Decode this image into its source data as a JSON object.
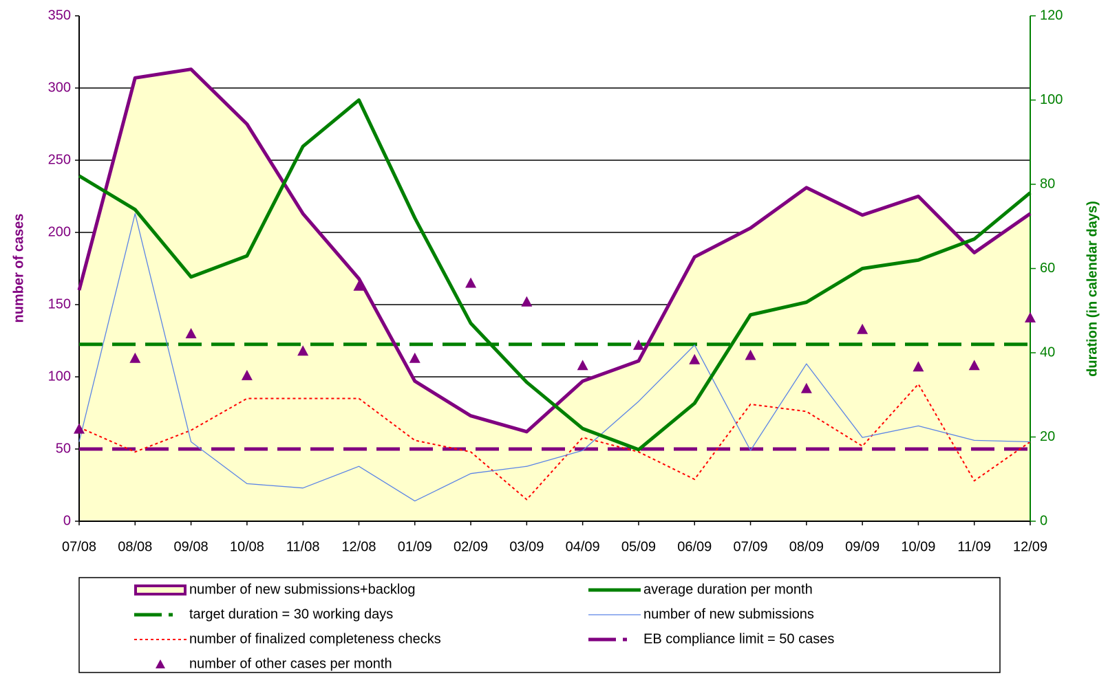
{
  "chart_data": {
    "type": "combo",
    "y_label": "number of cases",
    "y2_label": "duration (in calendar days)",
    "categories": [
      "07/08",
      "08/08",
      "09/08",
      "10/08",
      "11/08",
      "12/08",
      "01/09",
      "02/09",
      "03/09",
      "04/09",
      "05/09",
      "06/09",
      "07/09",
      "08/09",
      "09/09",
      "10/09",
      "11/09",
      "12/09"
    ],
    "ylim": [
      0,
      350
    ],
    "yticks": [
      0,
      50,
      100,
      150,
      200,
      250,
      300,
      350
    ],
    "y2lim": [
      0,
      120
    ],
    "y2ticks": [
      0,
      20,
      40,
      60,
      80,
      100,
      120
    ],
    "grid": true,
    "grid_values": [
      100,
      150,
      200,
      250,
      300
    ],
    "series": [
      {
        "name": "number of new submissions+backlog",
        "style": "area",
        "color": "#800080",
        "fill": "#ffffcc",
        "values": [
          160,
          307,
          313,
          275,
          213,
          168,
          97,
          73,
          62,
          97,
          111,
          183,
          203,
          231,
          212,
          225,
          186,
          213
        ]
      },
      {
        "name": "average duration per month",
        "style": "line",
        "color": "#008000",
        "axis": "y2",
        "values": [
          82,
          74,
          58,
          63,
          89,
          100,
          72,
          47,
          33,
          22,
          17,
          28,
          49,
          52,
          60,
          62,
          67,
          78
        ]
      },
      {
        "name": "target duration = 30 working days",
        "style": "dashed",
        "color": "#008000",
        "axis": "y2",
        "values": [
          42,
          42,
          42,
          42,
          42,
          42,
          42,
          42,
          42,
          42,
          42,
          42,
          42,
          42,
          42,
          42,
          42,
          42
        ]
      },
      {
        "name": "number of new submissions",
        "style": "thin",
        "color": "#5b84e6",
        "values": [
          55,
          213,
          55,
          26,
          23,
          38,
          14,
          33,
          38,
          49,
          83,
          122,
          49,
          109,
          58,
          66,
          56,
          55
        ]
      },
      {
        "name": "number of finalized completeness checks",
        "style": "dotted",
        "color": "#ff0000",
        "values": [
          65,
          48,
          63,
          85,
          85,
          85,
          56,
          48,
          15,
          58,
          48,
          29,
          81,
          76,
          52,
          95,
          28,
          55
        ]
      },
      {
        "name": "EB compliance limit = 50 cases",
        "style": "dashed",
        "color": "#800080",
        "values": [
          50,
          50,
          50,
          50,
          50,
          50,
          50,
          50,
          50,
          50,
          50,
          50,
          50,
          50,
          50,
          50,
          50,
          50
        ]
      },
      {
        "name": "number of other cases per month",
        "style": "marker",
        "color": "#800080",
        "values": [
          64,
          113,
          130,
          101,
          118,
          163,
          113,
          165,
          152,
          108,
          122,
          112,
          115,
          92,
          133,
          107,
          108,
          141
        ]
      }
    ],
    "legend_order": [
      0,
      2,
      4,
      6,
      1,
      3,
      5
    ]
  }
}
